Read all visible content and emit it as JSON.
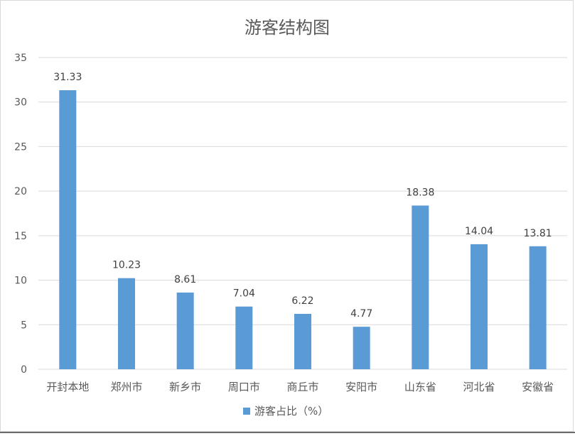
{
  "chart_data": {
    "type": "bar",
    "title": "游客结构图",
    "categories": [
      "开封本地",
      "郑州市",
      "新乡市",
      "周口市",
      "商丘市",
      "安阳市",
      "山东省",
      "河北省",
      "安徽省"
    ],
    "series": [
      {
        "name": "游客占比（%）",
        "values": [
          31.33,
          10.23,
          8.61,
          7.04,
          6.22,
          4.77,
          18.38,
          14.04,
          13.81
        ]
      }
    ],
    "data_labels": [
      "31.33",
      "10.23",
      "8.61",
      "7.04",
      "6.22",
      "4.77",
      "18.38",
      "14.04",
      "13.81"
    ],
    "yticks": [
      "0",
      "5",
      "10",
      "15",
      "20",
      "25",
      "30",
      "35"
    ],
    "ylim": [
      0,
      35
    ],
    "xlabel": "",
    "ylabel": "",
    "grid": true,
    "legend_position": "bottom",
    "colors": {
      "bar": "#5b9bd5",
      "grid": "#d9d9d9",
      "axis": "#d9d9d9",
      "text": "#595959"
    }
  }
}
